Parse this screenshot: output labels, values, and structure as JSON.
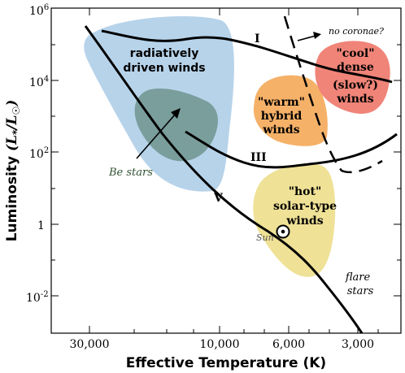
{
  "axes": {
    "y_label_main": "Luminosity",
    "y_label_unit": "(L",
    "y_label_sub_star": "*",
    "y_label_mid": "/L",
    "y_label_end": ")",
    "x_label": "Effective Temperature  (K)",
    "y_ticks": [
      "10",
      "10",
      "1",
      "10",
      "10"
    ],
    "y_tick_exponents": [
      "6",
      "4",
      "",
      "2",
      "-2"
    ],
    "x_ticks": [
      "30,000",
      "10,000",
      "6,000",
      "3,000"
    ]
  },
  "regions": {
    "radiative": {
      "line1": "radiatively",
      "line2": "driven winds",
      "color": "#b7d3ea"
    },
    "be_stars": {
      "label": "Be stars",
      "color": "#6f948e"
    },
    "warm": {
      "line1": "\"warm\"",
      "line2": "hybrid",
      "line3": "winds",
      "color": "#f5b168"
    },
    "cool": {
      "line1": "\"cool\"",
      "line2": "dense",
      "line3": "(slow?)",
      "line4": "winds",
      "color": "#f08478"
    },
    "hot": {
      "line1": "\"hot\"",
      "line2": "solar-type",
      "line3": "winds",
      "color": "#efe196"
    }
  },
  "labels": {
    "class_I": "I",
    "class_III": "III",
    "class_V": "V",
    "sun": "Sun",
    "no_coronae": "no coronae?",
    "flare_line1": "flare",
    "flare_line2": "stars"
  }
}
